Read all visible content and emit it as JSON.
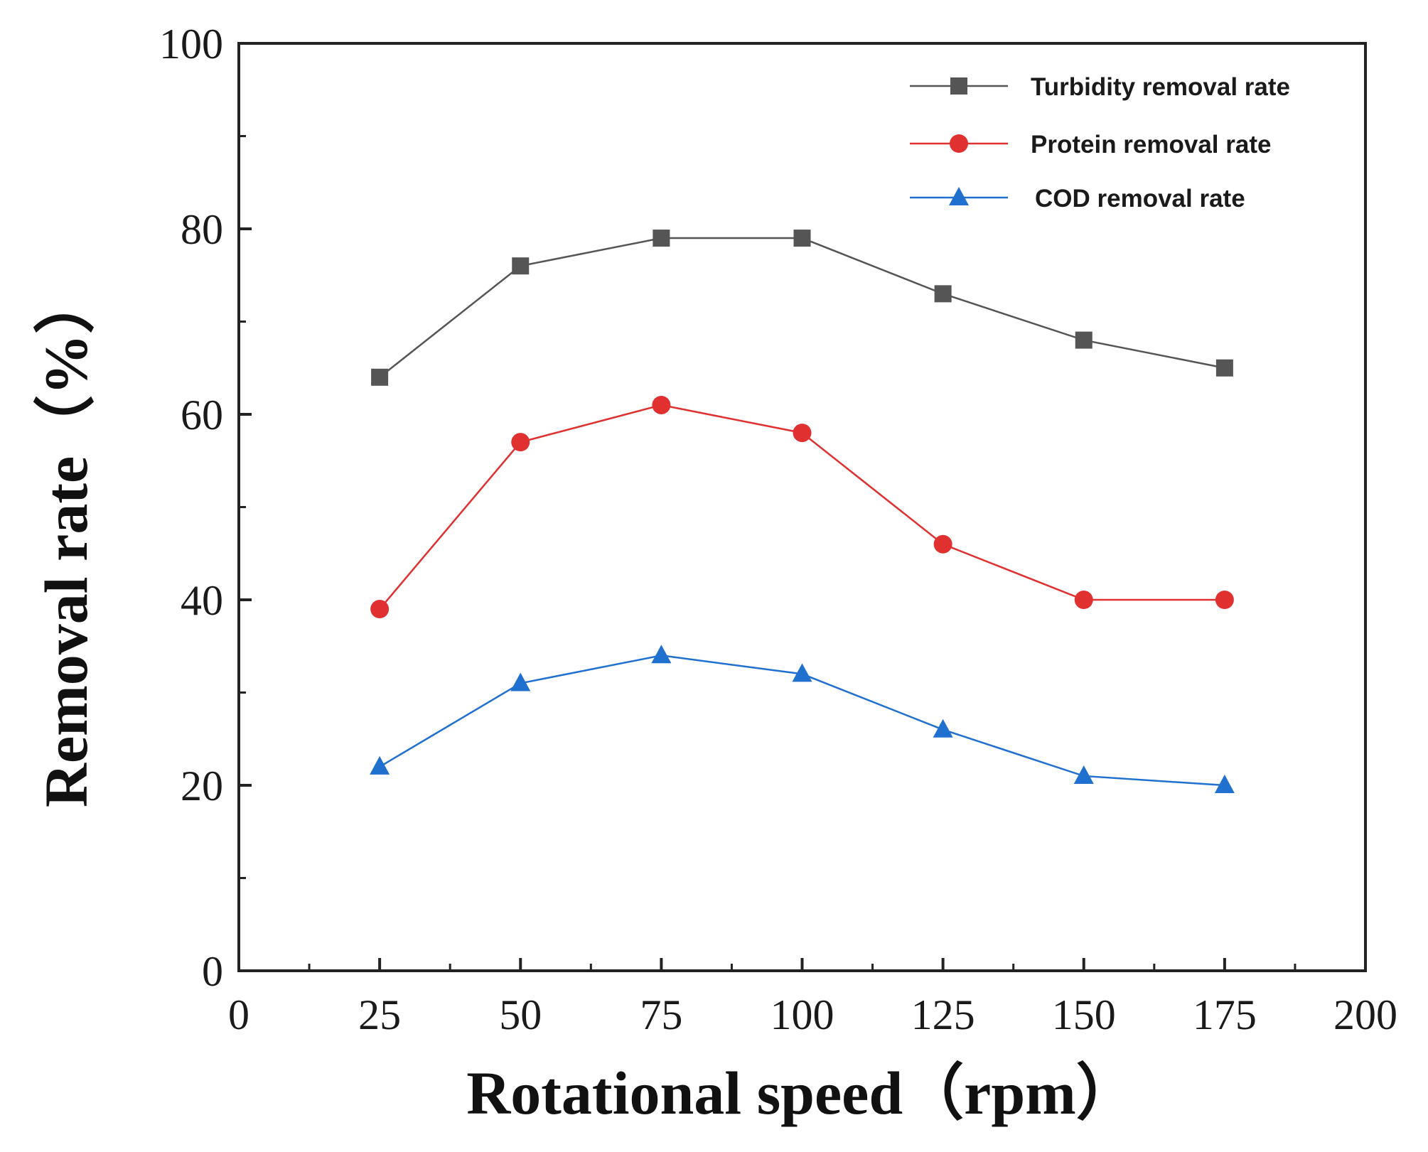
{
  "chart_data": {
    "type": "line",
    "title": "",
    "xlabel": "Rotational speed（rpm）",
    "ylabel": "Removal rate（%）",
    "xlim": [
      0,
      200
    ],
    "ylim": [
      0,
      100
    ],
    "xticks": [
      0,
      25,
      50,
      75,
      100,
      125,
      150,
      175,
      200
    ],
    "yticks": [
      0,
      20,
      40,
      60,
      80,
      100
    ],
    "grid": false,
    "legend_position": "top-right",
    "x": [
      25,
      50,
      75,
      100,
      125,
      150,
      175
    ],
    "series": [
      {
        "name": "Turbidity removal rate",
        "color": "#555555",
        "marker": "square",
        "values": [
          64,
          76,
          79,
          79,
          73,
          68,
          65
        ]
      },
      {
        "name": "Protein removal rate",
        "color": "#e03030",
        "marker": "circle",
        "values": [
          39,
          57,
          61,
          58,
          46,
          40,
          40
        ]
      },
      {
        "name": "COD removal rate",
        "color": "#2070d0",
        "marker": "triangle",
        "values": [
          22,
          31,
          34,
          32,
          26,
          21,
          20
        ]
      }
    ]
  }
}
